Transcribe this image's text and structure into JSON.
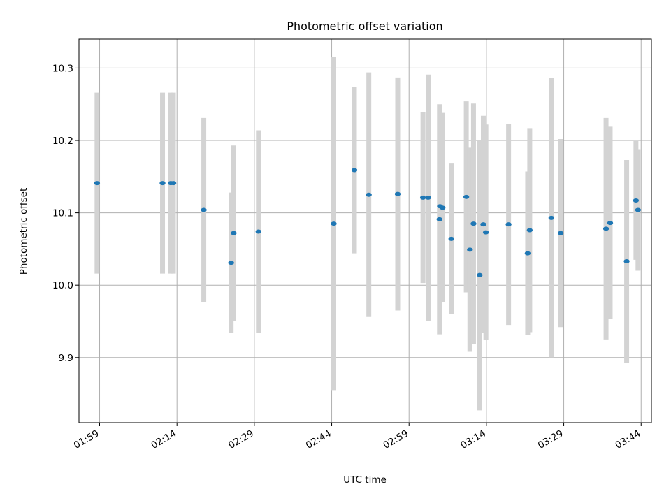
{
  "chart_data": {
    "type": "scatter",
    "title": "Photometric offset variation",
    "xlabel": "UTC time",
    "ylabel": "Photometric offset",
    "x_tick_labels": [
      "01:59",
      "02:14",
      "02:29",
      "02:44",
      "02:59",
      "03:14",
      "03:29",
      "03:44"
    ],
    "x_ticks": [
      "01:59",
      "02:14",
      "02:29",
      "02:44",
      "02:59",
      "03:14",
      "03:29",
      "03:44"
    ],
    "xlim": [
      "01:55",
      "03:46"
    ],
    "y_ticks": [
      9.9,
      10.0,
      10.1,
      10.2,
      10.3
    ],
    "y_tick_labels": [
      "9.9",
      "10.0",
      "10.1",
      "10.2",
      "10.3"
    ],
    "ylim": [
      9.81,
      10.34
    ],
    "grid": true,
    "colors": {
      "point": "#1f77b4",
      "errorbar": "#d3d3d3",
      "grid": "#b0b0b0"
    },
    "points": [
      {
        "t": "01:58.5",
        "y": 10.141,
        "err": 0.125
      },
      {
        "t": "02:11.2",
        "y": 10.141,
        "err": 0.125
      },
      {
        "t": "02:12.8",
        "y": 10.141,
        "err": 0.125
      },
      {
        "t": "02:13.3",
        "y": 10.141,
        "err": 0.125
      },
      {
        "t": "02:19.2",
        "y": 10.104,
        "err": 0.127
      },
      {
        "t": "02:24.5",
        "y": 10.031,
        "err": 0.097
      },
      {
        "t": "02:25.0",
        "y": 10.072,
        "err": 0.121
      },
      {
        "t": "02:29.8",
        "y": 10.074,
        "err": 0.14
      },
      {
        "t": "02:44.4",
        "y": 10.085,
        "err": 0.23
      },
      {
        "t": "02:48.4",
        "y": 10.159,
        "err": 0.115
      },
      {
        "t": "02:51.2",
        "y": 10.125,
        "err": 0.169
      },
      {
        "t": "02:56.8",
        "y": 10.126,
        "err": 0.161
      },
      {
        "t": "03:01.7",
        "y": 10.121,
        "err": 0.118
      },
      {
        "t": "03:02.7",
        "y": 10.121,
        "err": 0.17
      },
      {
        "t": "03:04.9",
        "y": 10.091,
        "err": 0.159
      },
      {
        "t": "03:05.0",
        "y": 10.109,
        "err": 0.14
      },
      {
        "t": "03:05.5",
        "y": 10.107,
        "err": 0.131
      },
      {
        "t": "03:07.2",
        "y": 10.064,
        "err": 0.104
      },
      {
        "t": "03:10.1",
        "y": 10.122,
        "err": 0.132
      },
      {
        "t": "03:10.8",
        "y": 10.049,
        "err": 0.141
      },
      {
        "t": "03:11.5",
        "y": 10.085,
        "err": 0.166
      },
      {
        "t": "03:12.7",
        "y": 10.014,
        "err": 0.187
      },
      {
        "t": "03:13.4",
        "y": 10.084,
        "err": 0.15
      },
      {
        "t": "03:13.9",
        "y": 10.073,
        "err": 0.149
      },
      {
        "t": "03:18.3",
        "y": 10.084,
        "err": 0.139
      },
      {
        "t": "03:22.0",
        "y": 10.044,
        "err": 0.113
      },
      {
        "t": "03:22.4",
        "y": 10.076,
        "err": 0.141
      },
      {
        "t": "03:26.6",
        "y": 10.093,
        "err": 0.193
      },
      {
        "t": "03:28.4",
        "y": 10.072,
        "err": 0.13
      },
      {
        "t": "03:37.2",
        "y": 10.078,
        "err": 0.153
      },
      {
        "t": "03:38.0",
        "y": 10.086,
        "err": 0.133
      },
      {
        "t": "03:41.2",
        "y": 10.033,
        "err": 0.14
      },
      {
        "t": "03:43.0",
        "y": 10.117,
        "err": 0.082
      },
      {
        "t": "03:43.4",
        "y": 10.104,
        "err": 0.084
      }
    ]
  }
}
